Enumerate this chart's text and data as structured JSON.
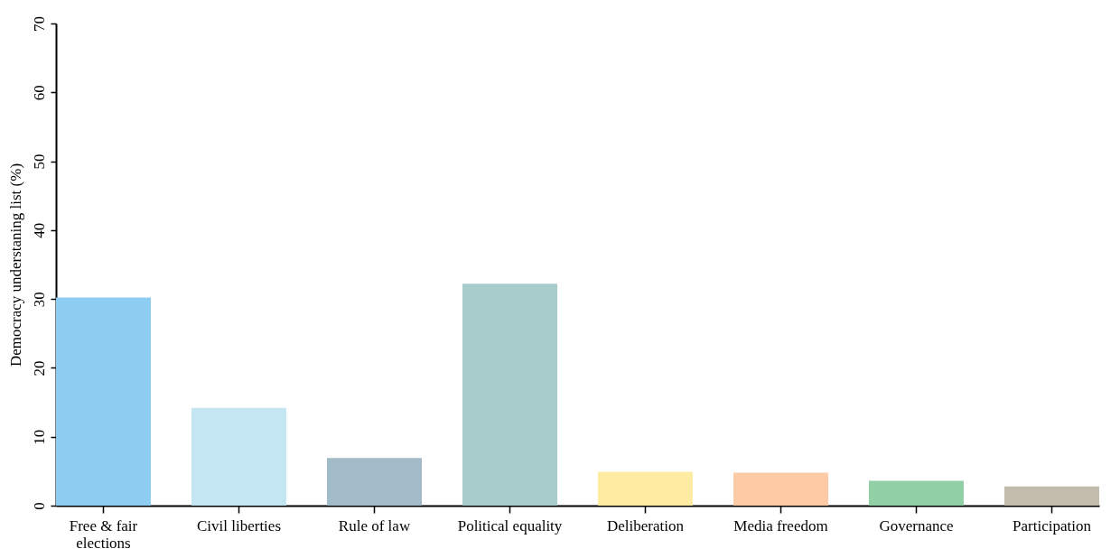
{
  "chart_data": {
    "type": "bar",
    "ylabel": "Democracy understaning list (%)",
    "categories": [
      "Free & fair elections",
      "Civil liberties",
      "Rule of law",
      "Political equality",
      "Deliberation",
      "Media freedom",
      "Governance",
      "Participation"
    ],
    "values": [
      30.2,
      14.2,
      6.9,
      32.2,
      4.9,
      4.8,
      3.6,
      2.8
    ],
    "colors": [
      "#8ccdf1",
      "#c4e6f3",
      "#a3bac8",
      "#a8cccb",
      "#ffeca2",
      "#fccba5",
      "#91cfa5",
      "#c3bcac"
    ],
    "ylim": [
      0,
      70
    ],
    "yticks": [
      0,
      10,
      20,
      30,
      40,
      50,
      60,
      70
    ],
    "grid": false
  }
}
